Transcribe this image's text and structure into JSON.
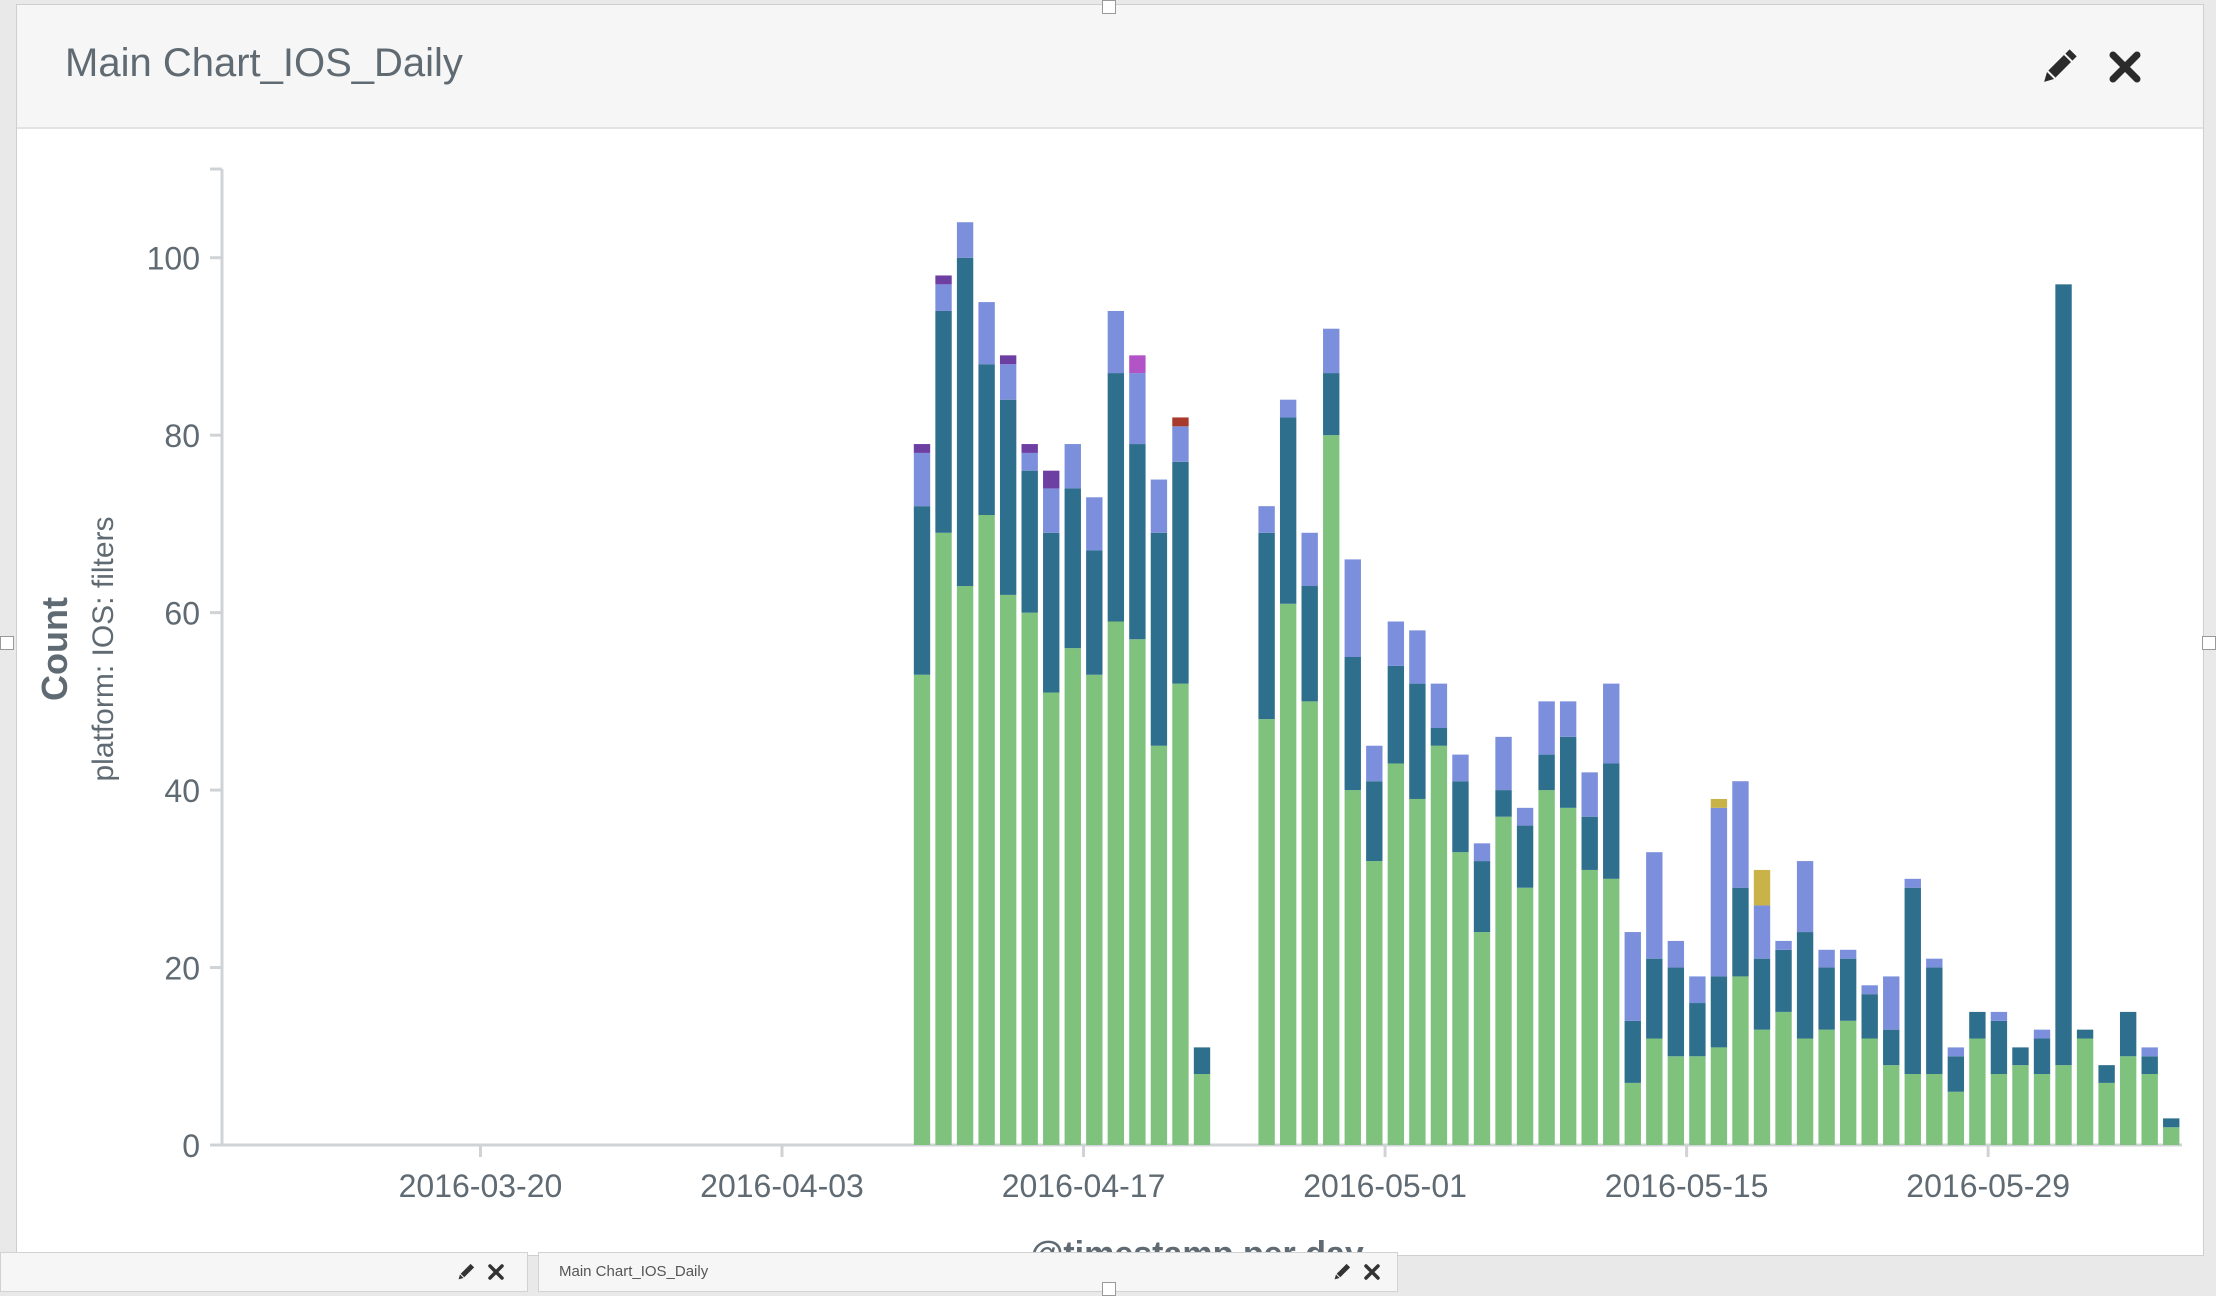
{
  "panel": {
    "title": "Main Chart_IOS_Daily",
    "edit_icon": "pencil-icon",
    "close_icon": "close-icon"
  },
  "chart_data": {
    "type": "bar",
    "stacked": true,
    "xlabel": "@timestamp per day",
    "ylabel": "Count",
    "ylabel_sub": "platform: IOS: filters",
    "ylim": [
      0,
      110
    ],
    "y_ticks": [
      0,
      20,
      40,
      60,
      80,
      100
    ],
    "x_range": [
      "2016-03-08",
      "2016-06-07"
    ],
    "x_ticks": [
      "2016-03-20",
      "2016-04-03",
      "2016-04-17",
      "2016-05-01",
      "2016-05-15",
      "2016-05-29"
    ],
    "colors": [
      "#7ec27e",
      "#2d6f8c",
      "#7b8fdc",
      "#6e3fa3",
      "#b354c6",
      "#a83a2c",
      "#c9b348"
    ],
    "x": [
      "2016-04-09",
      "2016-04-10",
      "2016-04-11",
      "2016-04-12",
      "2016-04-13",
      "2016-04-14",
      "2016-04-15",
      "2016-04-16",
      "2016-04-17",
      "2016-04-18",
      "2016-04-19",
      "2016-04-20",
      "2016-04-21",
      "2016-04-22",
      "2016-04-25",
      "2016-04-26",
      "2016-04-27",
      "2016-04-28",
      "2016-04-29",
      "2016-04-30",
      "2016-05-01",
      "2016-05-02",
      "2016-05-03",
      "2016-05-04",
      "2016-05-05",
      "2016-05-06",
      "2016-05-07",
      "2016-05-08",
      "2016-05-09",
      "2016-05-10",
      "2016-05-11",
      "2016-05-12",
      "2016-05-13",
      "2016-05-14",
      "2016-05-15",
      "2016-05-16",
      "2016-05-17",
      "2016-05-18",
      "2016-05-19",
      "2016-05-20",
      "2016-05-21",
      "2016-05-22",
      "2016-05-23",
      "2016-05-24",
      "2016-05-25",
      "2016-05-26",
      "2016-05-27",
      "2016-05-28",
      "2016-05-29",
      "2016-05-30",
      "2016-05-31",
      "2016-06-01",
      "2016-06-02",
      "2016-06-03",
      "2016-06-04",
      "2016-06-05",
      "2016-06-06"
    ],
    "series": [
      {
        "values": [
          53,
          69,
          63,
          71,
          62,
          60,
          51,
          56,
          53,
          59,
          57,
          45,
          52,
          8,
          48,
          61,
          50,
          80,
          40,
          32,
          43,
          39,
          45,
          33,
          24,
          37,
          29,
          40,
          38,
          31,
          30,
          7,
          12,
          10,
          10,
          11,
          19,
          13,
          15,
          12,
          13,
          14,
          12,
          9,
          8,
          8,
          6,
          12,
          8,
          9,
          8,
          9,
          12,
          7,
          10,
          8,
          2
        ]
      },
      {
        "values": [
          19,
          25,
          37,
          17,
          22,
          16,
          18,
          18,
          14,
          28,
          22,
          24,
          25,
          3,
          21,
          21,
          13,
          7,
          15,
          9,
          11,
          13,
          2,
          8,
          8,
          3,
          7,
          4,
          8,
          6,
          13,
          7,
          9,
          10,
          6,
          8,
          10,
          8,
          7,
          12,
          7,
          7,
          5,
          4,
          21,
          12,
          4,
          3,
          6,
          2,
          4,
          88,
          1,
          2,
          5,
          2,
          1
        ]
      },
      {
        "values": [
          6,
          3,
          4,
          7,
          4,
          2,
          5,
          5,
          6,
          7,
          8,
          6,
          4,
          0,
          3,
          2,
          6,
          5,
          11,
          4,
          5,
          6,
          5,
          3,
          2,
          6,
          2,
          6,
          4,
          5,
          9,
          10,
          12,
          3,
          3,
          19,
          12,
          6,
          1,
          8,
          2,
          1,
          1,
          6,
          1,
          1,
          1,
          0,
          1,
          0,
          1,
          0,
          0,
          0,
          0,
          1,
          0
        ]
      },
      {
        "values": [
          1,
          1,
          0,
          0,
          1,
          1,
          2,
          0,
          0,
          0,
          0,
          0,
          0,
          0,
          0,
          0,
          0,
          0,
          0,
          0,
          0,
          0,
          0,
          0,
          0,
          0,
          0,
          0,
          0,
          0,
          0,
          0,
          0,
          0,
          0,
          0,
          0,
          0,
          0,
          0,
          0,
          0,
          0,
          0,
          0,
          0,
          0,
          0,
          0,
          0,
          0,
          0,
          0,
          0,
          0,
          0,
          0
        ]
      },
      {
        "values": [
          0,
          0,
          0,
          0,
          0,
          0,
          0,
          0,
          0,
          0,
          2,
          0,
          0,
          0,
          0,
          0,
          0,
          0,
          0,
          0,
          0,
          0,
          0,
          0,
          0,
          0,
          0,
          0,
          0,
          0,
          0,
          0,
          0,
          0,
          0,
          0,
          0,
          0,
          0,
          0,
          0,
          0,
          0,
          0,
          0,
          0,
          0,
          0,
          0,
          0,
          0,
          0,
          0,
          0,
          0,
          0,
          0
        ]
      },
      {
        "values": [
          0,
          0,
          0,
          0,
          0,
          0,
          0,
          0,
          0,
          0,
          0,
          0,
          1,
          0,
          0,
          0,
          0,
          0,
          0,
          0,
          0,
          0,
          0,
          0,
          0,
          0,
          0,
          0,
          0,
          0,
          0,
          0,
          0,
          0,
          0,
          0,
          0,
          0,
          0,
          0,
          0,
          0,
          0,
          0,
          0,
          0,
          0,
          0,
          0,
          0,
          0,
          0,
          0,
          0,
          0,
          0,
          0
        ]
      },
      {
        "values": [
          0,
          0,
          0,
          0,
          0,
          0,
          0,
          0,
          0,
          0,
          0,
          0,
          0,
          0,
          0,
          0,
          0,
          0,
          0,
          0,
          0,
          0,
          0,
          0,
          0,
          0,
          0,
          0,
          0,
          0,
          0,
          0,
          0,
          0,
          0,
          1,
          0,
          4,
          0,
          0,
          0,
          0,
          0,
          0,
          0,
          0,
          0,
          0,
          0,
          0,
          0,
          0,
          0,
          0,
          0,
          0,
          0
        ]
      }
    ]
  },
  "footer_panels": [
    {
      "title": ""
    },
    {
      "title": "Main Chart_IOS_Daily"
    }
  ]
}
